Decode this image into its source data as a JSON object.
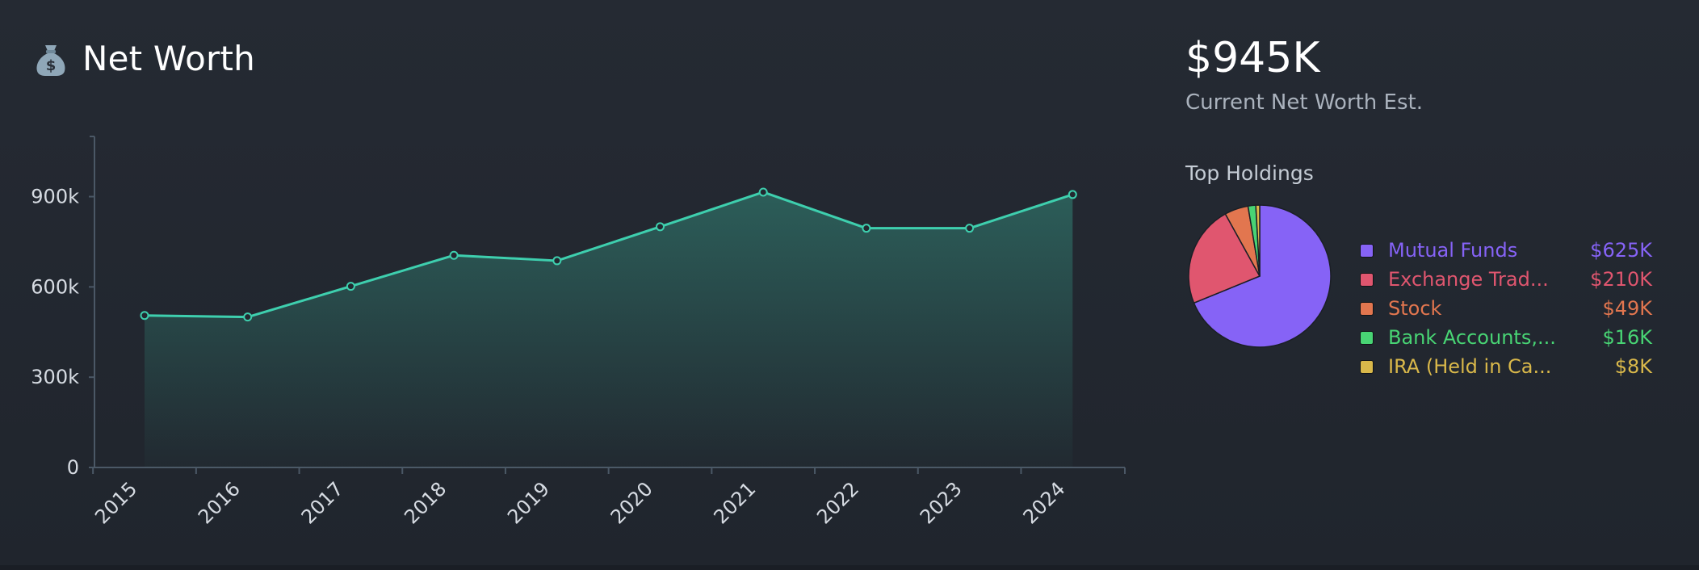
{
  "header": {
    "title": "Net Worth",
    "icon": "money-bag-icon"
  },
  "summary": {
    "value": "$945K",
    "caption": "Current Net Worth Est."
  },
  "holdings": {
    "title": "Top Holdings",
    "items": [
      {
        "name": "Mutual Funds",
        "value": "$625K",
        "color": "#8663f6"
      },
      {
        "name": "Exchange Trad...",
        "value": "$210K",
        "color": "#e0566f"
      },
      {
        "name": "Stock",
        "value": "$49K",
        "color": "#e2764f"
      },
      {
        "name": "Bank Accounts,...",
        "value": "$16K",
        "color": "#48d474"
      },
      {
        "name": "IRA (Held in Ca...",
        "value": "$8K",
        "color": "#d9b84a"
      }
    ]
  },
  "colors": {
    "line": "#3ecfae",
    "axis": "#4b5866"
  },
  "chart_data": [
    {
      "type": "area",
      "x": [
        "2015",
        "2016",
        "2017",
        "2018",
        "2019",
        "2020",
        "2021",
        "2022",
        "2023",
        "2024"
      ],
      "series": [
        {
          "values": [
            505000,
            500000,
            602000,
            705000,
            687000,
            800000,
            915000,
            795000,
            795000,
            907000
          ]
        }
      ],
      "yticks": [
        0,
        300000,
        600000,
        900000
      ],
      "ytick_labels": [
        "0",
        "300k",
        "600k",
        "900k"
      ],
      "ylim": [
        0,
        1100000
      ],
      "grid": false
    },
    {
      "type": "pie",
      "labels": [
        "Mutual Funds",
        "Exchange Trad...",
        "Stock",
        "Bank Accounts,...",
        "IRA (Held in Ca..."
      ],
      "values": [
        625,
        210,
        49,
        16,
        8
      ]
    }
  ]
}
